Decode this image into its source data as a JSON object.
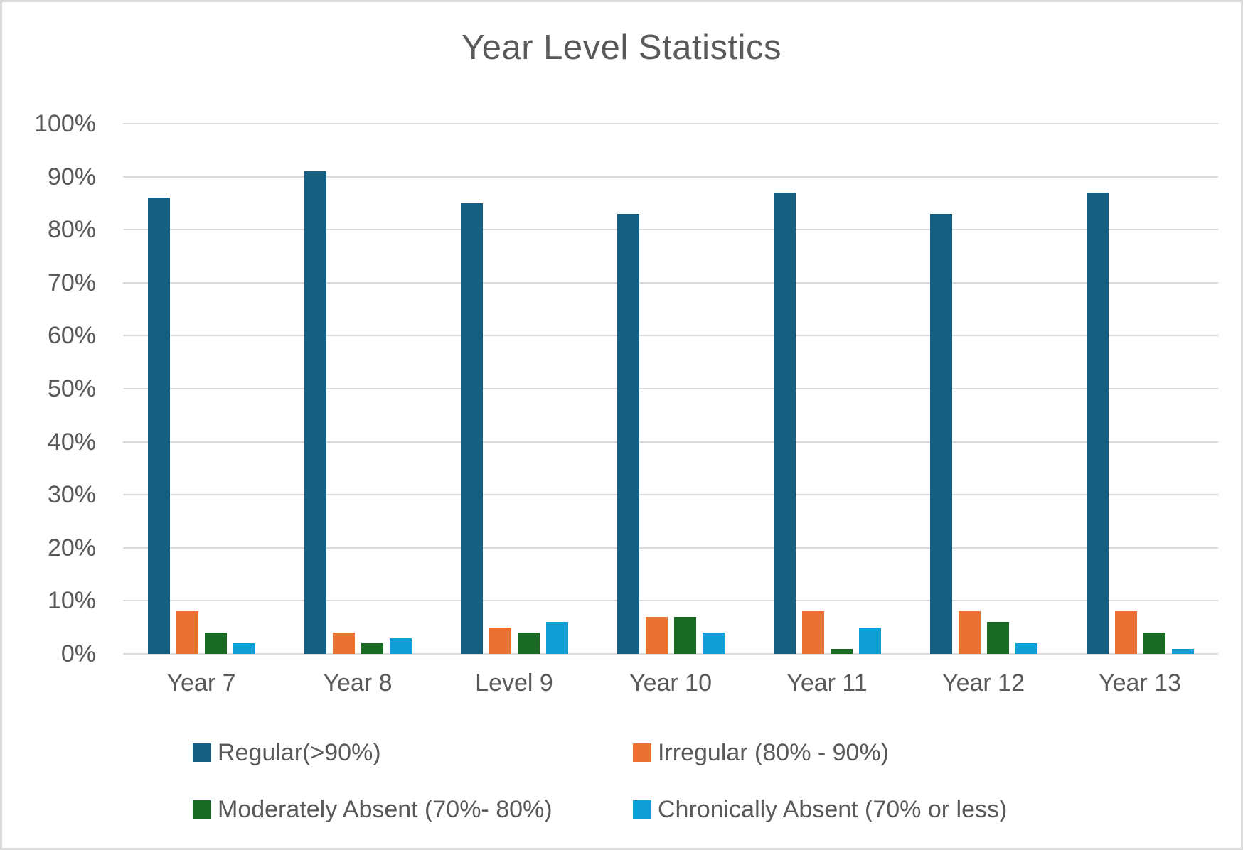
{
  "chart_data": {
    "type": "bar",
    "title": "Year Level Statistics",
    "categories": [
      "Year 7",
      "Year 8",
      "Level 9",
      "Year 10",
      "Year 11",
      "Year 12",
      "Year 13"
    ],
    "series": [
      {
        "name": "Regular(>90%)",
        "color": "#156082",
        "values": [
          86,
          91,
          85,
          83,
          87,
          83,
          87
        ]
      },
      {
        "name": "Irregular (80% - 90%)",
        "color": "#E97132",
        "values": [
          8,
          4,
          5,
          7,
          8,
          8,
          8
        ]
      },
      {
        "name": "Moderately Absent (70%- 80%)",
        "color": "#196B24",
        "values": [
          4,
          2,
          4,
          7,
          1,
          6,
          4
        ]
      },
      {
        "name": "Chronically Absent (70% or less)",
        "color": "#0F9ED5",
        "values": [
          2,
          3,
          6,
          4,
          5,
          2,
          1
        ]
      }
    ],
    "xlabel": "",
    "ylabel": "",
    "ylim": [
      0,
      100
    ],
    "ytick_step": 10,
    "ytick_suffix": "%",
    "ytick_labels": [
      "0%",
      "10%",
      "20%",
      "30%",
      "40%",
      "50%",
      "60%",
      "70%",
      "80%",
      "90%",
      "100%"
    ],
    "grid": true,
    "legend_position": "bottom",
    "legend_columns": 2
  },
  "colors": {
    "text": "#595959",
    "gridline": "#D9D9D9",
    "background": "#FFFFFF",
    "border": "#D9D9D9"
  }
}
